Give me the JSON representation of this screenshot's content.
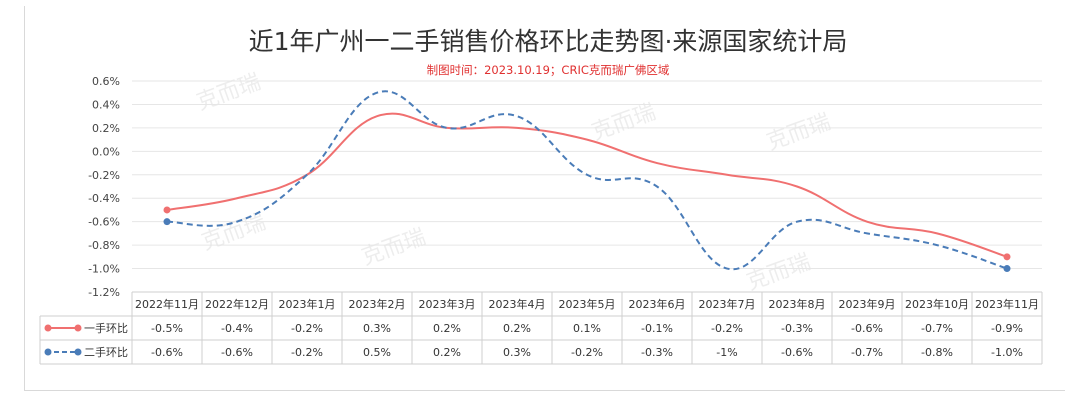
{
  "chart_data": {
    "type": "line",
    "title": "近1年广州一二手销售价格环比走势图·来源国家统计局",
    "subtitle": "制图时间：2023.10.19；CRIC克而瑞广佛区域",
    "watermark": "克而瑞",
    "categories": [
      "2022年11月",
      "2022年12月",
      "2023年1月",
      "2023年2月",
      "2023年3月",
      "2023年4月",
      "2023年5月",
      "2023年6月",
      "2023年7月",
      "2023年8月",
      "2023年9月",
      "2023年10月",
      "2023年11月"
    ],
    "ylim": [
      -1.2,
      0.6
    ],
    "yticks": [
      0.6,
      0.4,
      0.2,
      0.0,
      -0.2,
      -0.4,
      -0.6,
      -0.8,
      -1.0,
      -1.2
    ],
    "ytick_labels": [
      "0.6%",
      "0.4%",
      "0.2%",
      "0.0%",
      "-0.2%",
      "-0.4%",
      "-0.6%",
      "-0.8%",
      "-1.0%",
      "-1.2%"
    ],
    "grid": true,
    "legend": "table-bottom",
    "series": [
      {
        "name": "一手环比",
        "color": "#f07070",
        "style": "solid",
        "values": [
          -0.5,
          -0.4,
          -0.2,
          0.3,
          0.2,
          0.2,
          0.1,
          -0.1,
          -0.2,
          -0.3,
          -0.6,
          -0.7,
          -0.9
        ],
        "labels": [
          "-0.5%",
          "-0.4%",
          "-0.2%",
          "0.3%",
          "0.2%",
          "0.2%",
          "0.1%",
          "-0.1%",
          "-0.2%",
          "-0.3%",
          "-0.6%",
          "-0.7%",
          "-0.9%"
        ]
      },
      {
        "name": "二手环比",
        "color": "#4a7cb8",
        "style": "dashed",
        "values": [
          -0.6,
          -0.6,
          -0.2,
          0.5,
          0.2,
          0.3,
          -0.2,
          -0.3,
          -1.0,
          -0.6,
          -0.7,
          -0.8,
          -1.0
        ],
        "labels": [
          "-0.6%",
          "-0.6%",
          "-0.2%",
          "0.5%",
          "0.2%",
          "0.3%",
          "-0.2%",
          "-0.3%",
          "-1%",
          "-0.6%",
          "-0.7%",
          "-0.8%",
          "-1.0%"
        ]
      }
    ]
  }
}
